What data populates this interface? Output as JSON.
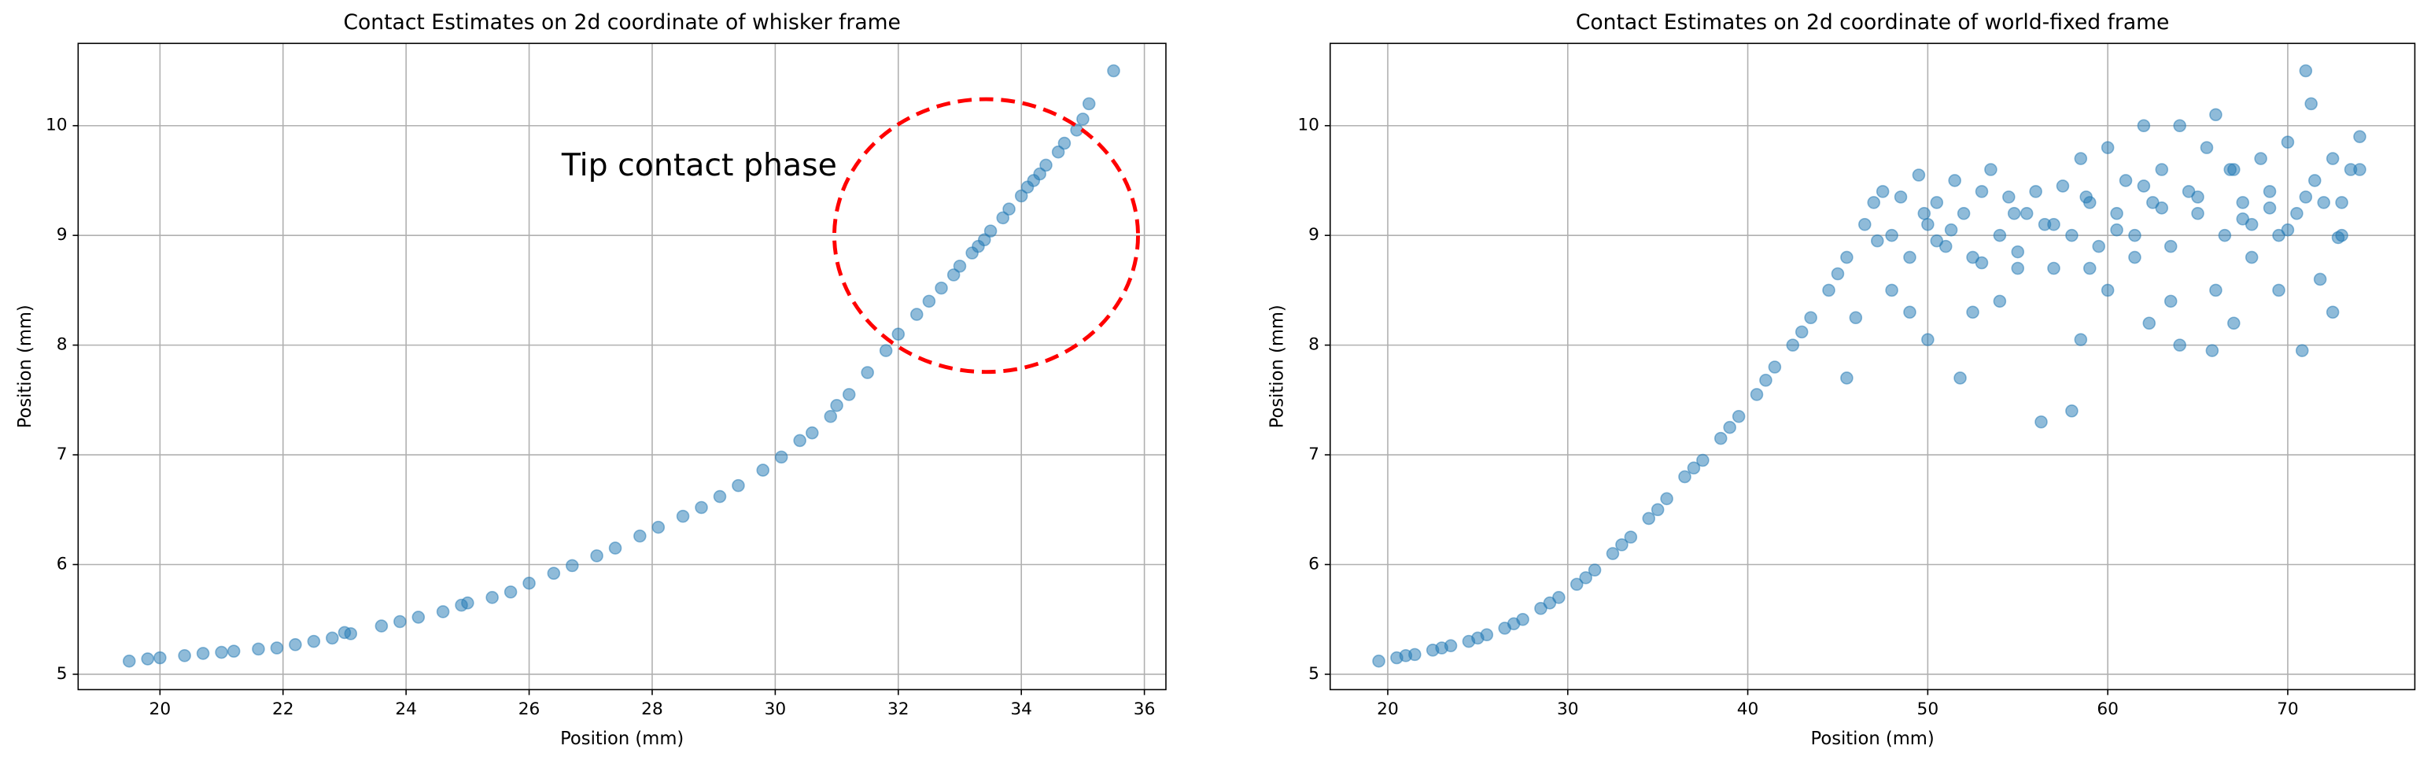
{
  "chart_data": [
    {
      "type": "scatter",
      "title": "Contact Estimates on 2d coordinate of whisker frame",
      "xlabel": "Position (mm)",
      "ylabel": "Position (mm)",
      "color": "#1f77b4",
      "alpha": 0.5,
      "grid": true,
      "annotation": "Tip contact phase",
      "xlim": [
        18.67,
        36.35
      ],
      "ylim": [
        4.86,
        10.75
      ],
      "xticks": [
        20,
        22,
        24,
        26,
        28,
        30,
        32,
        34,
        36
      ],
      "yticks": [
        5,
        6,
        7,
        8,
        9,
        10
      ],
      "x": [
        19.5,
        19.8,
        20.0,
        20.4,
        20.7,
        21.0,
        21.2,
        21.6,
        21.9,
        22.2,
        22.5,
        22.8,
        23.1,
        23.6,
        23.9,
        24.2,
        24.6,
        24.9,
        25.4,
        25.7,
        26.0,
        26.4,
        26.7,
        27.1,
        27.4,
        27.8,
        28.1,
        28.5,
        28.8,
        29.1,
        29.4,
        29.8,
        30.1,
        30.4,
        30.6,
        30.9,
        31.2,
        31.5,
        31.8,
        32.0,
        32.3,
        32.5,
        32.7,
        32.9,
        33.0,
        33.2,
        33.4,
        33.5,
        33.7,
        33.8,
        34.0,
        34.1,
        34.3,
        34.4,
        34.6,
        34.7,
        34.9,
        35.0,
        35.1,
        35.5,
        25.0,
        23.0,
        31.0,
        33.3,
        34.2
      ],
      "values": [
        5.12,
        5.14,
        5.15,
        5.17,
        5.19,
        5.2,
        5.21,
        5.23,
        5.24,
        5.27,
        5.3,
        5.33,
        5.37,
        5.44,
        5.48,
        5.52,
        5.57,
        5.63,
        5.7,
        5.75,
        5.83,
        5.92,
        5.99,
        6.08,
        6.15,
        6.26,
        6.34,
        6.44,
        6.52,
        6.62,
        6.72,
        6.86,
        6.98,
        7.13,
        7.2,
        7.35,
        7.55,
        7.75,
        7.95,
        8.1,
        8.28,
        8.4,
        8.52,
        8.64,
        8.72,
        8.84,
        8.96,
        9.04,
        9.16,
        9.24,
        9.36,
        9.44,
        9.56,
        9.64,
        9.76,
        9.84,
        9.96,
        10.06,
        10.2,
        10.5,
        5.65,
        5.38,
        7.45,
        8.9,
        9.5
      ]
    },
    {
      "type": "scatter",
      "title": "Contact Estimates on 2d coordinate of world-fixed frame",
      "xlabel": "Position (mm)",
      "ylabel": "Position (mm)",
      "color": "#1f77b4",
      "alpha": 0.5,
      "grid": true,
      "xlim": [
        16.8,
        77.06
      ],
      "ylim": [
        4.86,
        10.75
      ],
      "xticks": [
        20,
        30,
        40,
        50,
        60,
        70
      ],
      "yticks": [
        5,
        6,
        7,
        8,
        9,
        10
      ],
      "x": [
        19.5,
        20.5,
        21.5,
        22.5,
        23.5,
        24.5,
        25.5,
        26.5,
        27.5,
        28.5,
        29.5,
        30.5,
        31.5,
        32.5,
        33.5,
        34.5,
        35.5,
        36.5,
        37.5,
        38.5,
        39.5,
        40.5,
        41.5,
        42.5,
        43.5,
        44.5,
        45.5,
        46.5,
        47,
        21,
        23,
        25,
        27,
        29,
        31,
        33,
        35,
        37,
        39,
        41,
        43,
        45,
        47.5,
        48,
        48.5,
        49,
        49.5,
        50,
        50.5,
        51,
        51.5,
        52,
        52.5,
        53,
        53.5,
        54,
        54.5,
        55,
        55.5,
        56,
        56.5,
        57,
        57.5,
        58,
        58.5,
        59,
        59.5,
        60,
        60.5,
        61,
        61.5,
        62,
        62.5,
        63,
        63.5,
        64,
        64.5,
        65,
        65.5,
        66,
        66.5,
        67,
        67.5,
        68,
        68.5,
        69,
        69.5,
        70,
        70.5,
        71,
        71.3,
        71.5,
        72,
        72.5,
        73,
        73.5,
        74,
        74,
        45.5,
        46,
        50,
        51.8,
        52.5,
        56.3,
        58,
        58.5,
        60,
        62.3,
        63.5,
        64,
        65.8,
        67,
        69.5,
        70.8,
        71.8,
        72.5,
        49,
        54,
        55,
        59,
        61.5,
        66,
        68,
        72.8,
        48,
        50.5,
        53,
        57,
        60.5,
        63,
        65,
        67.5,
        70,
        73,
        47.2,
        49.8,
        51.3,
        54.8,
        58.8,
        62,
        66.8,
        69,
        71
      ],
      "values": [
        5.12,
        5.15,
        5.18,
        5.22,
        5.26,
        5.3,
        5.36,
        5.42,
        5.5,
        5.6,
        5.7,
        5.82,
        5.95,
        6.1,
        6.25,
        6.42,
        6.6,
        6.8,
        6.95,
        7.15,
        7.35,
        7.55,
        7.8,
        8.0,
        8.25,
        8.5,
        8.8,
        9.1,
        9.3,
        5.17,
        5.24,
        5.33,
        5.46,
        5.65,
        5.88,
        6.18,
        6.5,
        6.88,
        7.25,
        7.68,
        8.12,
        8.65,
        9.4,
        9.0,
        9.35,
        8.8,
        9.55,
        9.1,
        9.3,
        8.9,
        9.5,
        9.2,
        8.8,
        9.4,
        9.6,
        9.0,
        9.35,
        8.85,
        9.2,
        9.4,
        9.1,
        8.7,
        9.45,
        9.0,
        9.7,
        9.3,
        8.9,
        9.8,
        9.2,
        9.5,
        9.0,
        10.0,
        9.3,
        9.6,
        8.9,
        10.0,
        9.4,
        9.2,
        9.8,
        10.1,
        9.0,
        9.6,
        9.3,
        9.1,
        9.7,
        9.4,
        9.0,
        9.85,
        9.2,
        10.5,
        10.2,
        9.5,
        9.3,
        9.7,
        9.0,
        9.6,
        9.9,
        9.6,
        7.7,
        8.25,
        8.05,
        7.7,
        8.3,
        7.3,
        7.4,
        8.05,
        8.5,
        8.2,
        8.4,
        8.0,
        7.95,
        8.2,
        8.5,
        7.95,
        8.6,
        8.3,
        8.3,
        8.4,
        8.7,
        8.7,
        8.8,
        8.5,
        8.8,
        8.98,
        8.5,
        8.95,
        8.75,
        9.1,
        9.05,
        9.25,
        9.35,
        9.15,
        9.05,
        9.3,
        8.95,
        9.2,
        9.05,
        9.2,
        9.35,
        9.45,
        9.6,
        9.25,
        9.35
      ]
    }
  ]
}
